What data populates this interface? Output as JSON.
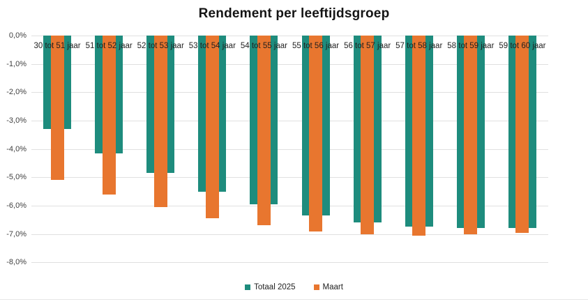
{
  "chart_data": {
    "type": "bar",
    "title": "Rendement per leeftijdsgroep",
    "categories": [
      "30 tot 51 jaar",
      "51 tot 52 jaar",
      "52 tot 53 jaar",
      "53 tot 54 jaar",
      "54 tot 55 jaar",
      "55 tot 56 jaar",
      "56 tot 57 jaar",
      "57 tot 58 jaar",
      "58 tot 59 jaar",
      "59 tot 60 jaar"
    ],
    "series": [
      {
        "name": "Totaal 2025",
        "color": "#1E8C7D",
        "values": [
          -3.3,
          -4.15,
          -4.85,
          -5.5,
          -5.95,
          -6.35,
          -6.6,
          -6.75,
          -6.8,
          -6.8
        ]
      },
      {
        "name": "Maart",
        "color": "#E8762F",
        "values": [
          -5.1,
          -5.6,
          -6.05,
          -6.45,
          -6.7,
          -6.9,
          -7.0,
          -7.05,
          -7.0,
          -6.95
        ]
      }
    ],
    "xlabel": "",
    "ylabel": "",
    "ylim": [
      -8,
      0
    ],
    "ytick_labels": [
      "0,0%",
      "-1,0%",
      "-2,0%",
      "-3,0%",
      "-4,0%",
      "-5,0%",
      "-6,0%",
      "-7,0%",
      "-8,0%"
    ],
    "grid": true,
    "bar_layout": "overlapped",
    "legend_position": "bottom",
    "gridline_color": "#E0E0E0"
  }
}
